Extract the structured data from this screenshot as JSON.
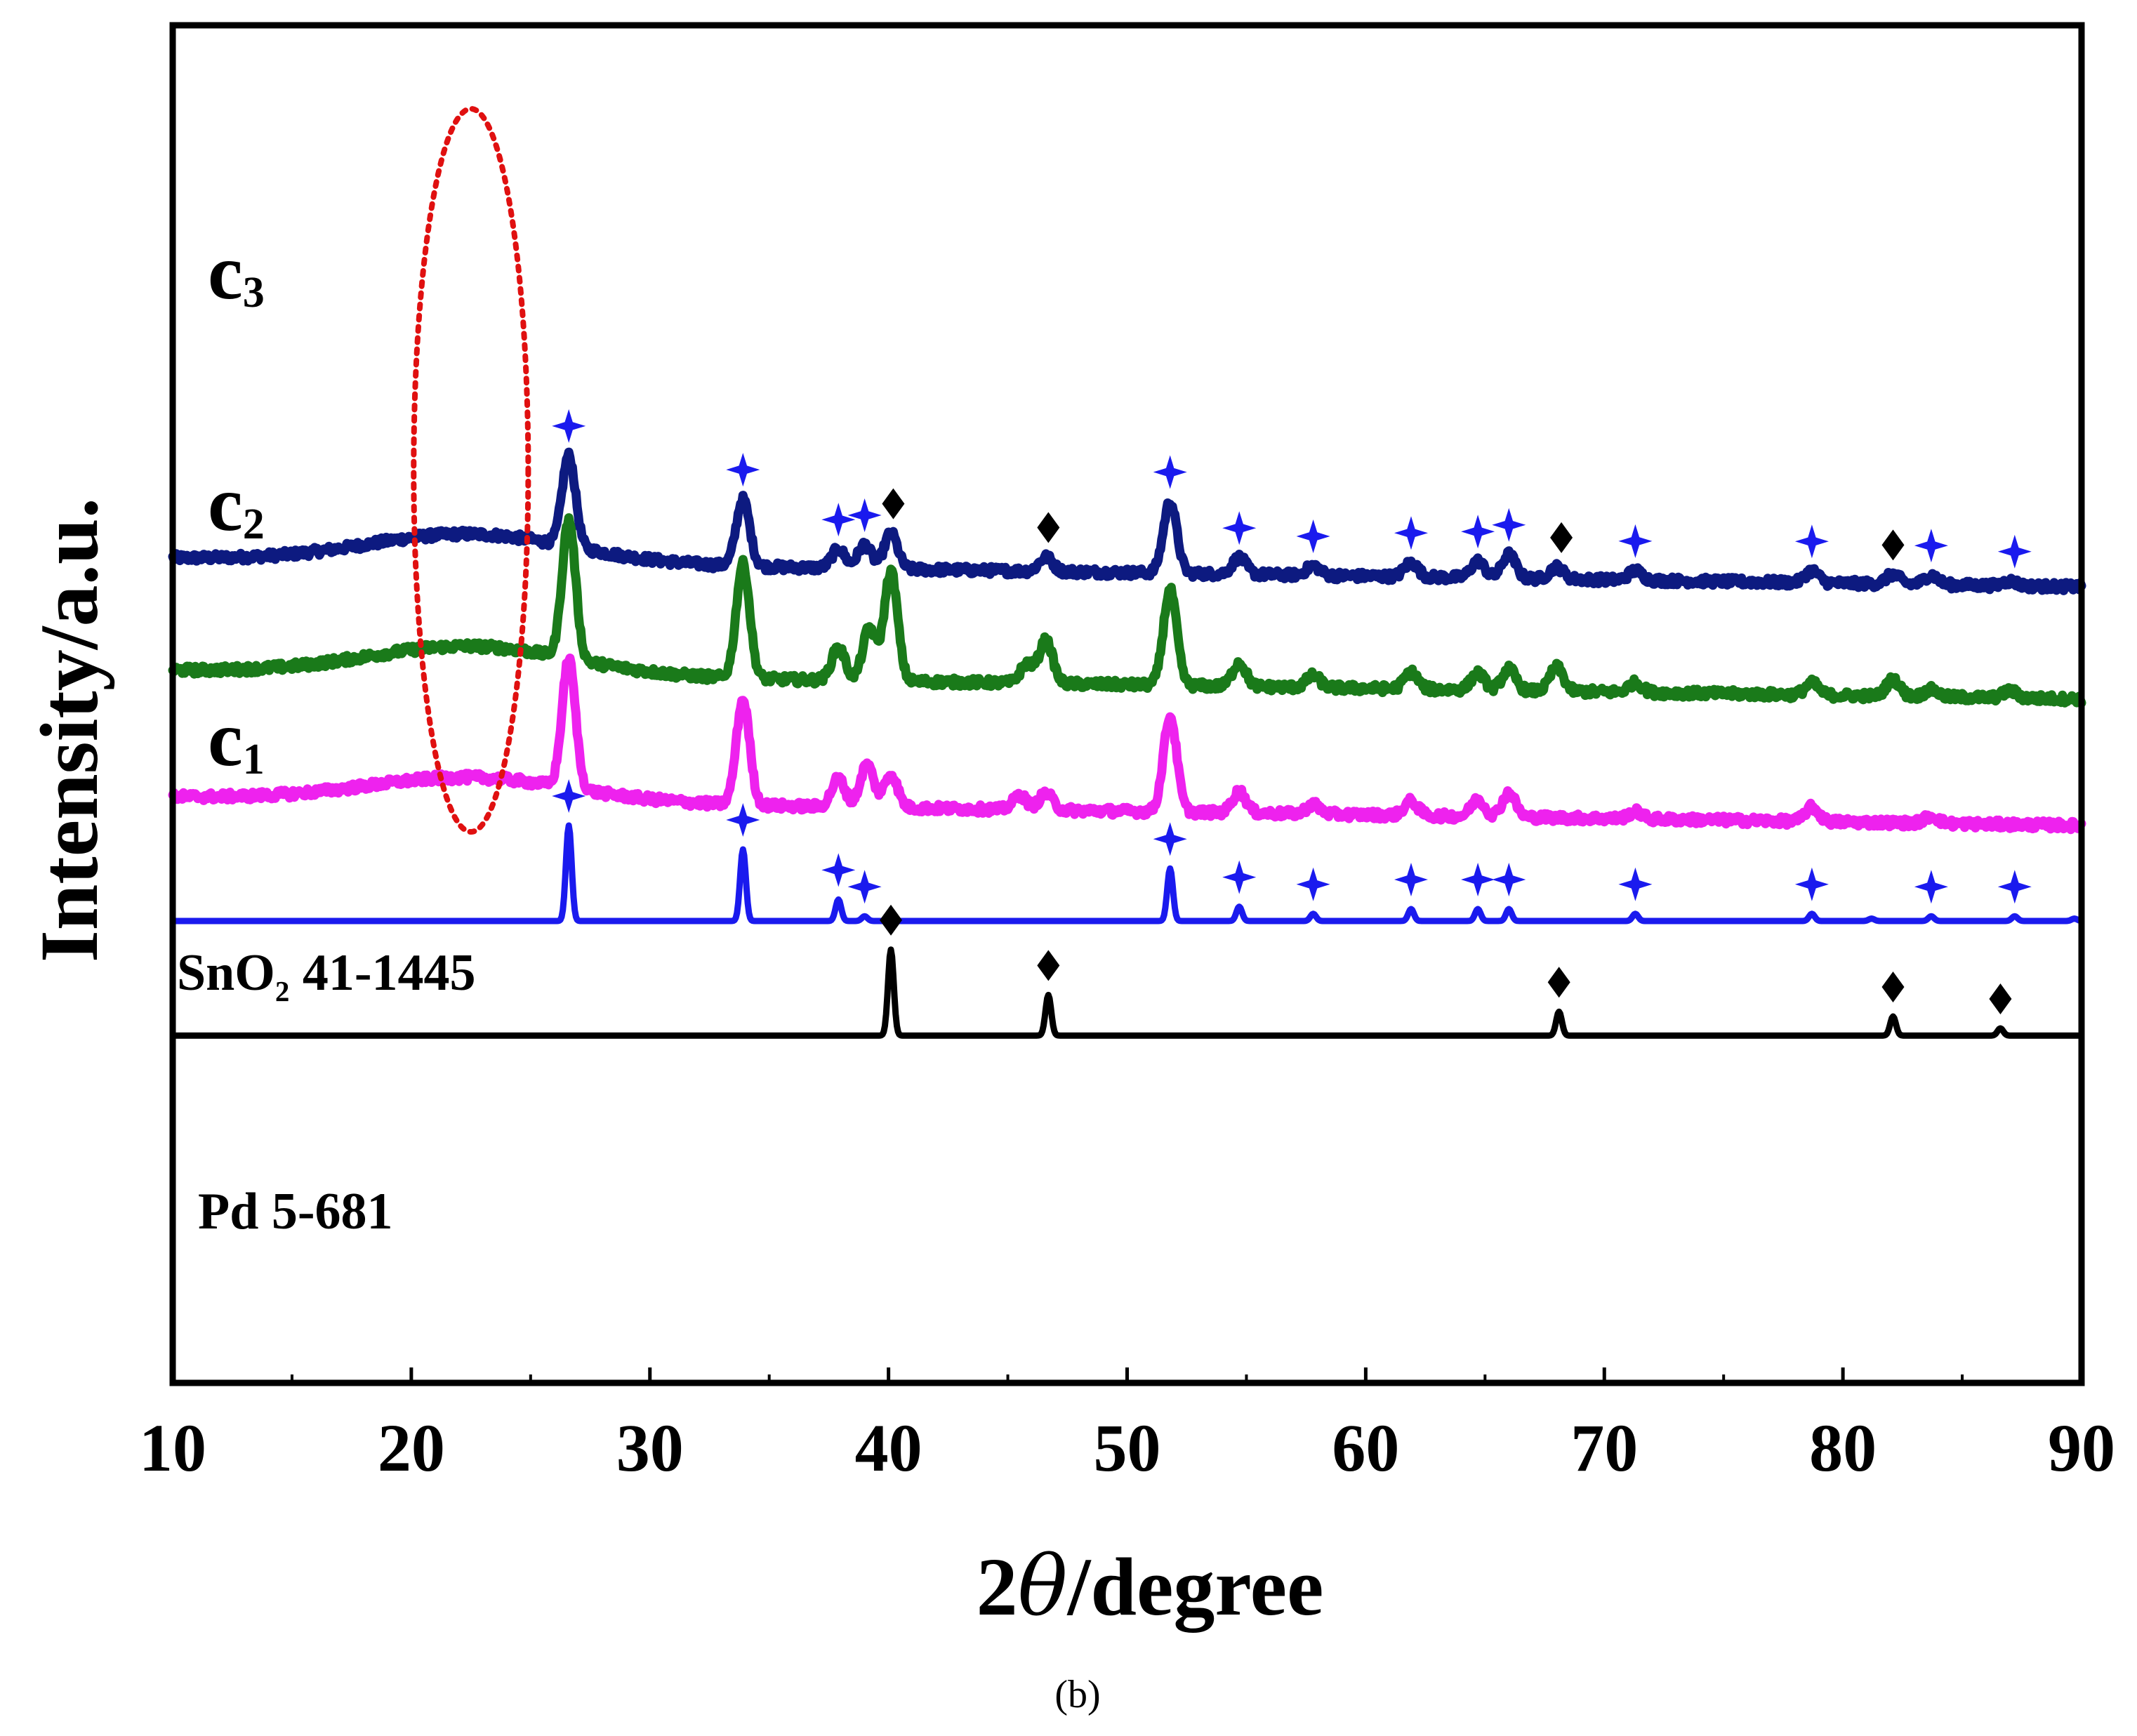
{
  "chart_data": {
    "type": "line",
    "title": "",
    "panel_label": "(b)",
    "xlabel": "2θ/degree",
    "xlabel_parts": [
      "2",
      "θ",
      "/degree"
    ],
    "ylabel": "Intensity/a.u.",
    "xlim": [
      10,
      90
    ],
    "xticks": [
      10,
      20,
      30,
      40,
      50,
      60,
      70,
      80,
      90
    ],
    "grid": false,
    "legend": "inline-left",
    "highlight_ellipse": {
      "x_center": 22.5,
      "x_halfwidth": 2.4,
      "note": "amorphous hump region",
      "color": "#e01010"
    },
    "series": [
      {
        "name": "c3",
        "label_main": "c",
        "label_sub": "3",
        "color": "#0d1a80",
        "kind": "experimental",
        "baseline": {
          "start": 0.72,
          "end": 0.6
        },
        "hump": {
          "center": 22.5,
          "width": 6.0,
          "height": 0.12
        },
        "peaks": [
          [
            26.6,
            0.38
          ],
          [
            33.9,
            0.28
          ],
          [
            37.9,
            0.08
          ],
          [
            39.0,
            0.1
          ],
          [
            40.1,
            0.15
          ],
          [
            46.6,
            0.06
          ],
          [
            51.8,
            0.3
          ],
          [
            54.7,
            0.07
          ],
          [
            57.8,
            0.04
          ],
          [
            61.9,
            0.06
          ],
          [
            64.7,
            0.07
          ],
          [
            66.0,
            0.1
          ],
          [
            68.0,
            0.05
          ],
          [
            71.3,
            0.04
          ],
          [
            78.7,
            0.05
          ],
          [
            82.1,
            0.04
          ],
          [
            83.7,
            0.04
          ],
          [
            87.0,
            0.02
          ]
        ],
        "markers": [
          {
            "x": 26.6,
            "symbol": "star"
          },
          {
            "x": 33.9,
            "symbol": "star"
          },
          {
            "x": 37.9,
            "symbol": "star"
          },
          {
            "x": 39.0,
            "symbol": "star"
          },
          {
            "x": 40.2,
            "symbol": "diamond"
          },
          {
            "x": 46.7,
            "symbol": "diamond"
          },
          {
            "x": 51.8,
            "symbol": "star"
          },
          {
            "x": 54.7,
            "symbol": "star"
          },
          {
            "x": 57.8,
            "symbol": "star"
          },
          {
            "x": 61.9,
            "symbol": "star"
          },
          {
            "x": 64.7,
            "symbol": "star"
          },
          {
            "x": 66.0,
            "symbol": "star"
          },
          {
            "x": 68.2,
            "symbol": "diamond"
          },
          {
            "x": 71.3,
            "symbol": "star"
          },
          {
            "x": 78.7,
            "symbol": "star"
          },
          {
            "x": 82.1,
            "symbol": "diamond"
          },
          {
            "x": 83.7,
            "symbol": "star"
          },
          {
            "x": 87.2,
            "symbol": "star"
          }
        ]
      },
      {
        "name": "c2",
        "label_main": "c",
        "label_sub": "2",
        "color": "#1a7a1a",
        "kind": "experimental",
        "baseline": {
          "start": 0.25,
          "end": 0.13
        },
        "hump": {
          "center": 22.5,
          "width": 6.0,
          "height": 0.12
        },
        "peaks": [
          [
            26.6,
            0.58
          ],
          [
            33.9,
            0.48
          ],
          [
            37.9,
            0.14
          ],
          [
            39.2,
            0.22
          ],
          [
            40.1,
            0.46
          ],
          [
            45.8,
            0.08
          ],
          [
            46.6,
            0.18
          ],
          [
            51.8,
            0.4
          ],
          [
            54.7,
            0.1
          ],
          [
            57.8,
            0.05
          ],
          [
            61.9,
            0.07
          ],
          [
            64.7,
            0.07
          ],
          [
            66.0,
            0.09
          ],
          [
            68.0,
            0.1
          ],
          [
            71.3,
            0.04
          ],
          [
            78.7,
            0.05
          ],
          [
            82.1,
            0.07
          ],
          [
            83.7,
            0.03
          ],
          [
            87.0,
            0.03
          ]
        ],
        "markers": []
      },
      {
        "name": "c1",
        "label_main": "c",
        "label_sub": "1",
        "color": "#ee22ee",
        "kind": "experimental",
        "baseline": {
          "start": -0.28,
          "end": -0.4
        },
        "hump": {
          "center": 22.5,
          "width": 6.0,
          "height": 0.1
        },
        "peaks": [
          [
            26.6,
            0.54
          ],
          [
            33.9,
            0.44
          ],
          [
            37.9,
            0.12
          ],
          [
            39.1,
            0.18
          ],
          [
            40.1,
            0.14
          ],
          [
            45.5,
            0.06
          ],
          [
            46.6,
            0.07
          ],
          [
            51.8,
            0.4
          ],
          [
            54.7,
            0.09
          ],
          [
            57.8,
            0.04
          ],
          [
            61.9,
            0.06
          ],
          [
            64.7,
            0.07
          ],
          [
            66.0,
            0.1
          ],
          [
            71.3,
            0.03
          ],
          [
            78.7,
            0.06
          ],
          [
            83.7,
            0.03
          ]
        ],
        "markers": []
      },
      {
        "name": "SnO₂ 41-1445",
        "label_main": "SnO",
        "label_sub": "2",
        "label_after": " 41-1445",
        "color": "#1a1aee",
        "kind": "reference",
        "baseline": {
          "start": -0.8,
          "end": -0.8
        },
        "peaks": [
          [
            26.6,
            0.4
          ],
          [
            33.9,
            0.3
          ],
          [
            37.9,
            0.09
          ],
          [
            39.0,
            0.02
          ],
          [
            51.8,
            0.22
          ],
          [
            54.7,
            0.06
          ],
          [
            57.8,
            0.03
          ],
          [
            61.9,
            0.05
          ],
          [
            64.7,
            0.05
          ],
          [
            66.0,
            0.05
          ],
          [
            71.3,
            0.03
          ],
          [
            78.7,
            0.03
          ],
          [
            81.2,
            0.01
          ],
          [
            83.7,
            0.02
          ],
          [
            87.2,
            0.02
          ],
          [
            89.7,
            0.01
          ]
        ],
        "markers": [
          {
            "x": 26.6,
            "symbol": "star"
          },
          {
            "x": 33.9,
            "symbol": "star"
          },
          {
            "x": 37.9,
            "symbol": "star"
          },
          {
            "x": 39.0,
            "symbol": "star"
          },
          {
            "x": 51.8,
            "symbol": "star"
          },
          {
            "x": 54.7,
            "symbol": "star"
          },
          {
            "x": 57.8,
            "symbol": "star"
          },
          {
            "x": 61.9,
            "symbol": "star"
          },
          {
            "x": 64.7,
            "symbol": "star"
          },
          {
            "x": 66.0,
            "symbol": "star"
          },
          {
            "x": 71.3,
            "symbol": "star"
          },
          {
            "x": 78.7,
            "symbol": "star"
          },
          {
            "x": 83.7,
            "symbol": "star"
          },
          {
            "x": 87.2,
            "symbol": "star"
          }
        ]
      },
      {
        "name": "Pd 5-681",
        "label_main": "Pd 5-681",
        "label_sub": "",
        "color": "#000000",
        "kind": "reference",
        "baseline": {
          "start": -1.28,
          "end": -1.28
        },
        "peaks": [
          [
            40.1,
            0.36
          ],
          [
            46.7,
            0.17
          ],
          [
            68.1,
            0.1
          ],
          [
            82.1,
            0.08
          ],
          [
            86.6,
            0.03
          ]
        ],
        "markers": [
          {
            "x": 40.1,
            "symbol": "diamond"
          },
          {
            "x": 46.7,
            "symbol": "diamond"
          },
          {
            "x": 68.1,
            "symbol": "diamond"
          },
          {
            "x": 82.1,
            "symbol": "diamond"
          },
          {
            "x": 86.6,
            "symbol": "diamond"
          }
        ]
      }
    ]
  },
  "colors": {
    "axis": "#000000",
    "star_marker": "#1a1aee",
    "diamond_marker": "#000000"
  }
}
